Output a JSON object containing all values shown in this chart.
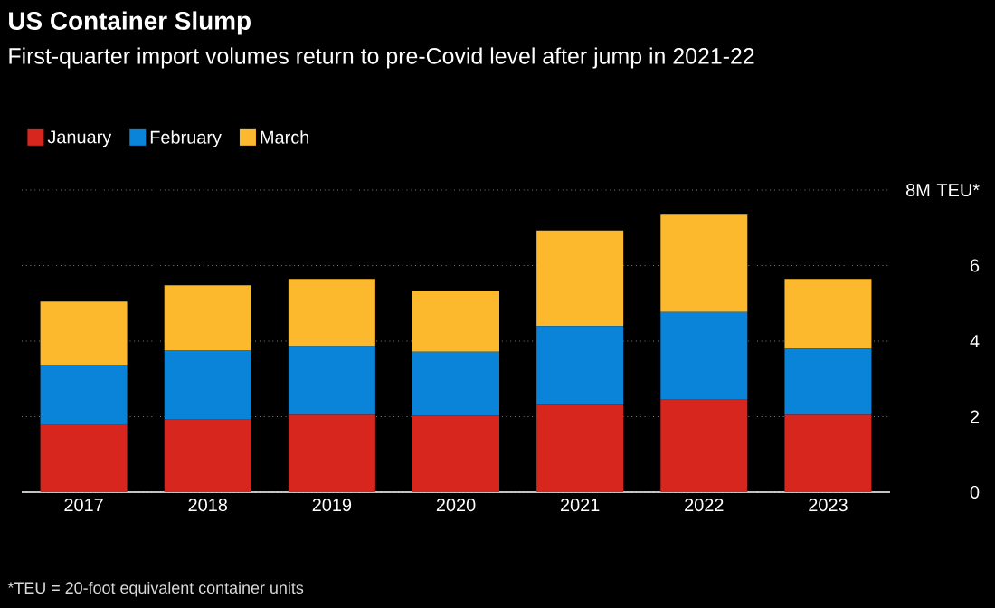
{
  "chart_data": {
    "type": "bar",
    "stacked": true,
    "title": "US Container Slump",
    "subtitle": "First-quarter import volumes return to pre-Covid level after jump in 2021-22",
    "categories": [
      "2017",
      "2018",
      "2019",
      "2020",
      "2021",
      "2022",
      "2023"
    ],
    "series": [
      {
        "name": "January",
        "color": "#d7261e",
        "values": [
          1.78,
          1.92,
          2.05,
          2.03,
          2.32,
          2.45,
          2.05
        ]
      },
      {
        "name": "February",
        "color": "#0a84d9",
        "values": [
          1.6,
          1.83,
          1.82,
          1.69,
          2.08,
          2.32,
          1.75
        ]
      },
      {
        "name": "March",
        "color": "#fdb92e",
        "values": [
          1.67,
          1.73,
          1.78,
          1.6,
          2.53,
          2.58,
          1.85
        ]
      }
    ],
    "ylim": [
      0,
      8
    ],
    "yticks": [
      0,
      2,
      4,
      6,
      {
        "value": 8,
        "label": "8M TEU*"
      }
    ],
    "grid": "y",
    "legend": "top left",
    "annotations": [
      "*TEU = 20-foot equivalent container units"
    ]
  }
}
